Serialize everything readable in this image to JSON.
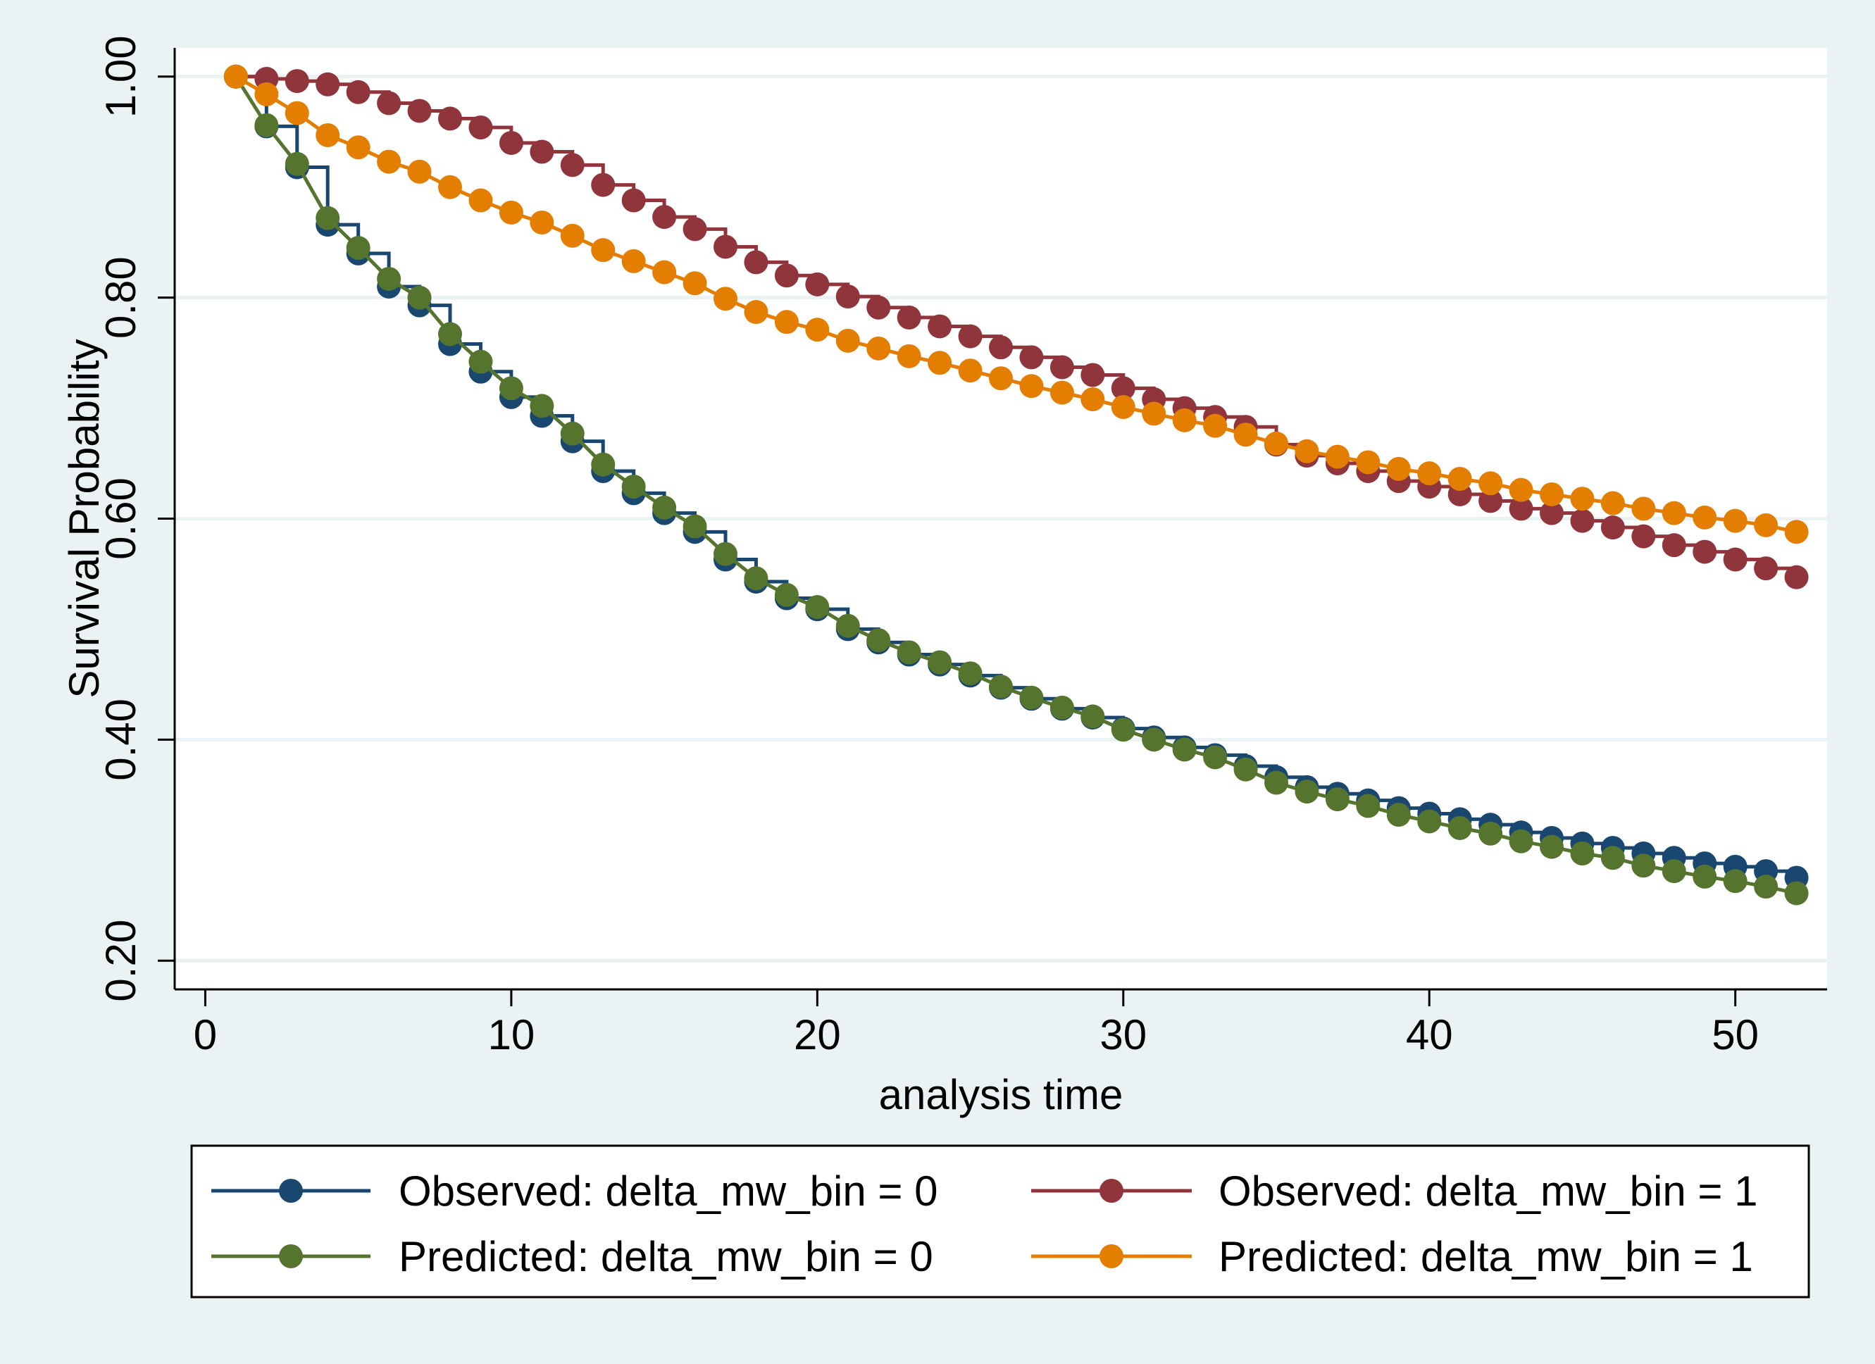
{
  "chart_data": {
    "type": "line",
    "title": "",
    "xlabel": "analysis time",
    "ylabel": "Survival Probability",
    "xlim": [
      -1,
      53
    ],
    "ylim": [
      0.174,
      1.026
    ],
    "xticks": [
      0,
      10,
      20,
      30,
      40,
      50
    ],
    "xtick_labels": [
      "0",
      "10",
      "20",
      "30",
      "40",
      "50"
    ],
    "yticks": [
      0.2,
      0.4,
      0.6,
      0.8,
      1.0
    ],
    "ytick_labels": [
      "0.20",
      "0.40",
      "0.60",
      "0.80",
      "1.00"
    ],
    "grid": "horizontal",
    "legend_position": "bottom",
    "background_color": "#eaf2f3",
    "plot_background_color": "#ffffff",
    "grid_color": "#eaf2f3",
    "series": [
      {
        "name": "Observed: delta_mw_bin = 0",
        "style": "step",
        "color": "#1a476f",
        "x": [
          1,
          2,
          3,
          4,
          5,
          6,
          7,
          8,
          9,
          10,
          11,
          12,
          13,
          14,
          15,
          16,
          17,
          18,
          19,
          20,
          21,
          22,
          23,
          24,
          25,
          26,
          27,
          28,
          29,
          30,
          31,
          32,
          33,
          34,
          35,
          36,
          37,
          38,
          39,
          40,
          41,
          42,
          43,
          44,
          45,
          46,
          47,
          48,
          49,
          50,
          51,
          52
        ],
        "y": [
          1.0,
          0.955,
          0.918,
          0.866,
          0.84,
          0.81,
          0.793,
          0.758,
          0.733,
          0.71,
          0.693,
          0.67,
          0.643,
          0.623,
          0.605,
          0.588,
          0.563,
          0.543,
          0.528,
          0.518,
          0.5,
          0.488,
          0.477,
          0.468,
          0.458,
          0.447,
          0.437,
          0.428,
          0.42,
          0.41,
          0.402,
          0.393,
          0.386,
          0.376,
          0.366,
          0.357,
          0.351,
          0.345,
          0.338,
          0.333,
          0.328,
          0.323,
          0.316,
          0.311,
          0.306,
          0.302,
          0.297,
          0.293,
          0.288,
          0.285,
          0.281,
          0.275
        ]
      },
      {
        "name": "Observed: delta_mw_bin = 1",
        "style": "step",
        "color": "#90353b",
        "x": [
          1,
          2,
          3,
          4,
          5,
          6,
          7,
          8,
          9,
          10,
          11,
          12,
          13,
          14,
          15,
          16,
          17,
          18,
          19,
          20,
          21,
          22,
          23,
          24,
          25,
          26,
          27,
          28,
          29,
          30,
          31,
          32,
          33,
          34,
          35,
          36,
          37,
          38,
          39,
          40,
          41,
          42,
          43,
          44,
          45,
          46,
          47,
          48,
          49,
          50,
          51,
          52
        ],
        "y": [
          1.0,
          0.998,
          0.996,
          0.993,
          0.986,
          0.976,
          0.969,
          0.962,
          0.954,
          0.94,
          0.932,
          0.92,
          0.902,
          0.888,
          0.873,
          0.862,
          0.846,
          0.832,
          0.82,
          0.812,
          0.801,
          0.791,
          0.782,
          0.774,
          0.765,
          0.755,
          0.746,
          0.737,
          0.73,
          0.718,
          0.708,
          0.7,
          0.692,
          0.683,
          0.667,
          0.657,
          0.65,
          0.643,
          0.634,
          0.629,
          0.622,
          0.616,
          0.609,
          0.605,
          0.598,
          0.592,
          0.584,
          0.576,
          0.57,
          0.563,
          0.555,
          0.547
        ]
      },
      {
        "name": "Predicted: delta_mw_bin = 0",
        "style": "line",
        "color": "#55752f",
        "x": [
          1,
          2,
          3,
          4,
          5,
          6,
          7,
          8,
          9,
          10,
          11,
          12,
          13,
          14,
          15,
          16,
          17,
          18,
          19,
          20,
          21,
          22,
          23,
          24,
          25,
          26,
          27,
          28,
          29,
          30,
          31,
          32,
          33,
          34,
          35,
          36,
          37,
          38,
          39,
          40,
          41,
          42,
          43,
          44,
          45,
          46,
          47,
          48,
          49,
          50,
          51,
          52
        ],
        "y": [
          1.0,
          0.956,
          0.921,
          0.872,
          0.845,
          0.817,
          0.8,
          0.767,
          0.742,
          0.718,
          0.702,
          0.677,
          0.649,
          0.629,
          0.61,
          0.593,
          0.568,
          0.546,
          0.531,
          0.52,
          0.503,
          0.49,
          0.479,
          0.47,
          0.46,
          0.448,
          0.438,
          0.429,
          0.421,
          0.409,
          0.4,
          0.391,
          0.384,
          0.373,
          0.361,
          0.353,
          0.346,
          0.34,
          0.332,
          0.326,
          0.32,
          0.315,
          0.308,
          0.303,
          0.297,
          0.293,
          0.286,
          0.281,
          0.276,
          0.272,
          0.267,
          0.261
        ]
      },
      {
        "name": "Predicted: delta_mw_bin = 1",
        "style": "line",
        "color": "#e37e00",
        "x": [
          1,
          2,
          3,
          4,
          5,
          6,
          7,
          8,
          9,
          10,
          11,
          12,
          13,
          14,
          15,
          16,
          17,
          18,
          19,
          20,
          21,
          22,
          23,
          24,
          25,
          26,
          27,
          28,
          29,
          30,
          31,
          32,
          33,
          34,
          35,
          36,
          37,
          38,
          39,
          40,
          41,
          42,
          43,
          44,
          45,
          46,
          47,
          48,
          49,
          50,
          51,
          52
        ],
        "y": [
          1.0,
          0.984,
          0.967,
          0.947,
          0.936,
          0.923,
          0.914,
          0.9,
          0.888,
          0.877,
          0.868,
          0.856,
          0.843,
          0.833,
          0.823,
          0.813,
          0.799,
          0.787,
          0.778,
          0.771,
          0.761,
          0.754,
          0.747,
          0.741,
          0.734,
          0.727,
          0.72,
          0.714,
          0.708,
          0.701,
          0.695,
          0.689,
          0.684,
          0.676,
          0.668,
          0.661,
          0.656,
          0.651,
          0.645,
          0.641,
          0.636,
          0.632,
          0.626,
          0.622,
          0.618,
          0.614,
          0.609,
          0.605,
          0.601,
          0.598,
          0.594,
          0.588
        ]
      }
    ]
  }
}
